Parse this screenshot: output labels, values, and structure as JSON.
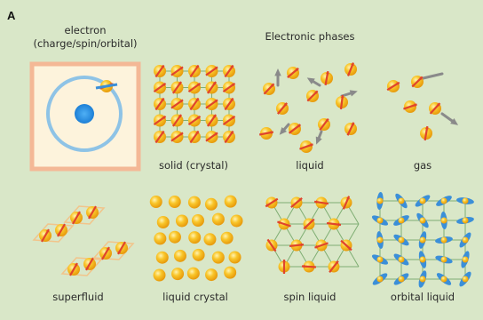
{
  "panel_label": "A",
  "electron": {
    "title_line1": "electron",
    "title_line2": "(charge/spin/orbital)"
  },
  "phases_title": "Electronic phases",
  "phases": [
    {
      "id": "solid",
      "label": "solid (crystal)"
    },
    {
      "id": "liquid",
      "label": "liquid"
    },
    {
      "id": "gas",
      "label": "gas"
    },
    {
      "id": "superfluid",
      "label": "superfluid"
    },
    {
      "id": "liquid-crystal",
      "label": "liquid crystal"
    },
    {
      "id": "spin-liquid",
      "label": "spin liquid"
    },
    {
      "id": "orbital-liquid",
      "label": "orbital liquid"
    }
  ],
  "colors": {
    "background": "#d9e7c8",
    "electron_box_fill": "#fdf3dc",
    "electron_box_border": "#f4b896",
    "orbit": "#8ec3e6",
    "nucleus": "#1d8be0",
    "particle": "#f7b81e",
    "spin_arrow": "#e0442c",
    "orbital_lobe": "#3b8fd8",
    "bond_line": "#7fae73",
    "pair_box": "#f2c48a",
    "motion_arrow": "#8a8a8a"
  }
}
